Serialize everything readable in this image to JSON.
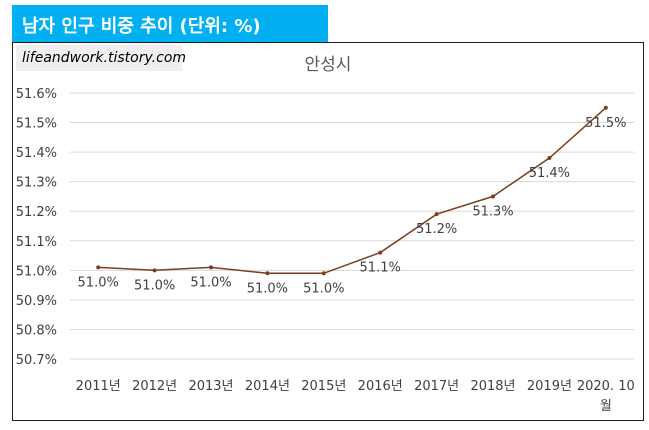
{
  "header": {
    "title": "남자 인구 비중 추이 (단위: %)"
  },
  "watermark": {
    "text": "lifeandwork.tistory.com"
  },
  "colors": {
    "header_bg": "#00b0f0",
    "line": "#7b3f1e",
    "grid": "#d9d9d9"
  },
  "chart_data": {
    "type": "line",
    "title": "안성시",
    "xlabel": "",
    "ylabel": "",
    "categories": [
      "2011년",
      "2012년",
      "2013년",
      "2014년",
      "2015년",
      "2016년",
      "2017년",
      "2018년",
      "2019년",
      "2020. 10월"
    ],
    "series": [
      {
        "values": [
          51.01,
          51.0,
          51.01,
          50.99,
          50.99,
          51.06,
          51.19,
          51.25,
          51.38,
          51.55
        ]
      }
    ],
    "data_labels": [
      "51.0%",
      "51.0%",
      "51.0%",
      "51.0%",
      "51.0%",
      "51.1%",
      "51.2%",
      "51.3%",
      "51.4%",
      "51.5%"
    ],
    "ylim": [
      50.7,
      51.6
    ],
    "yticks": [
      50.7,
      50.8,
      50.9,
      51.0,
      51.1,
      51.2,
      51.3,
      51.4,
      51.5,
      51.6
    ],
    "ytick_labels": [
      "50.7%",
      "50.8%",
      "50.9%",
      "51.0%",
      "51.1%",
      "51.2%",
      "51.3%",
      "51.4%",
      "51.5%",
      "51.6%"
    ],
    "grid": true,
    "legend": "none"
  }
}
